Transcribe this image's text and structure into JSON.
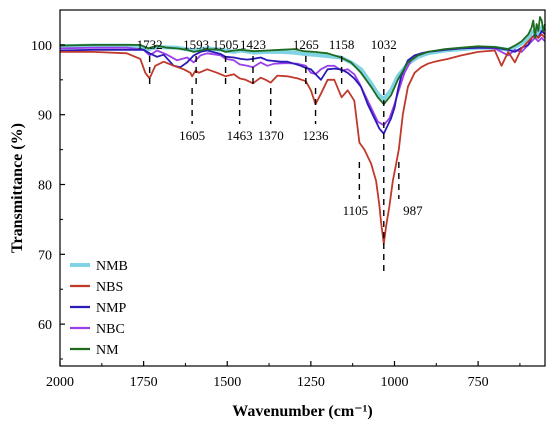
{
  "chart_data": {
    "type": "line",
    "xlabel": "Wavenumber (cm⁻¹)",
    "ylabel": "Transmittance (%)",
    "xlim": [
      2000,
      550
    ],
    "ylim": [
      54,
      105
    ],
    "xticks": [
      2000,
      1750,
      1500,
      1250,
      1000,
      750
    ],
    "yticks": [
      60,
      70,
      80,
      90,
      100
    ],
    "x_reversed": true,
    "grid": false,
    "legend_position": "bottom-left",
    "annotations_top": [
      "1732",
      "1593",
      "1505",
      "1423",
      "1265",
      "1158",
      "1032"
    ],
    "annotations_top_x": [
      1732,
      1593,
      1505,
      1423,
      1265,
      1158,
      1032
    ],
    "annotations_bottom": [
      "1605",
      "1463",
      "1370",
      "1236",
      "1105",
      "987"
    ],
    "annotations_bottom_x": [
      1605,
      1463,
      1370,
      1236,
      1105,
      987
    ],
    "series": [
      {
        "name": "NMB",
        "color": "#7fd3e3",
        "x": [
          2000,
          1900,
          1800,
          1760,
          1735,
          1710,
          1650,
          1600,
          1560,
          1520,
          1480,
          1460,
          1420,
          1380,
          1340,
          1300,
          1270,
          1240,
          1200,
          1160,
          1130,
          1100,
          1070,
          1050,
          1032,
          1010,
          990,
          960,
          930,
          900,
          850,
          800,
          750,
          700,
          660,
          640,
          620,
          600,
          590,
          580,
          570,
          560,
          550
        ],
        "y": [
          99.8,
          99.9,
          99.9,
          99.8,
          99.4,
          99.7,
          99.6,
          99.2,
          99.5,
          99.3,
          99.0,
          99.2,
          98.9,
          99.0,
          99.0,
          98.9,
          98.7,
          98.6,
          98.4,
          98.2,
          97.5,
          96.5,
          94.5,
          93.0,
          92.2,
          93.5,
          95.5,
          97.3,
          98.3,
          98.8,
          99.2,
          99.4,
          99.6,
          99.6,
          99.3,
          99.7,
          100.2,
          101.0,
          101.8,
          102.0,
          101.5,
          102.5,
          102.0
        ]
      },
      {
        "name": "NBS",
        "color": "#c0392b",
        "x": [
          2000,
          1900,
          1800,
          1760,
          1745,
          1732,
          1715,
          1690,
          1660,
          1630,
          1610,
          1605,
          1595,
          1585,
          1560,
          1530,
          1505,
          1480,
          1463,
          1445,
          1423,
          1400,
          1385,
          1370,
          1350,
          1320,
          1290,
          1265,
          1250,
          1236,
          1220,
          1200,
          1180,
          1158,
          1140,
          1120,
          1105,
          1090,
          1070,
          1055,
          1045,
          1040,
          1032,
          1025,
          1015,
          1005,
          995,
          987,
          975,
          960,
          940,
          920,
          900,
          880,
          860,
          840,
          800,
          750,
          700,
          680,
          660,
          640,
          620,
          600,
          590,
          580,
          570,
          560,
          550
        ],
        "y": [
          99.0,
          99.0,
          98.8,
          98.0,
          96.0,
          95.2,
          97.0,
          97.6,
          97.0,
          96.5,
          96.0,
          95.5,
          96.3,
          96.0,
          96.5,
          96.0,
          95.5,
          95.8,
          95.2,
          95.0,
          94.5,
          95.3,
          95.0,
          94.6,
          95.6,
          95.5,
          95.2,
          94.8,
          93.5,
          91.5,
          93.0,
          95.0,
          95.0,
          92.5,
          93.5,
          92.0,
          86.0,
          85.0,
          83.0,
          80.5,
          77.0,
          74.5,
          71.5,
          74.0,
          77.0,
          80.5,
          83.0,
          85.0,
          90.0,
          94.0,
          96.0,
          96.8,
          97.3,
          97.6,
          97.8,
          98.0,
          98.5,
          99.0,
          99.2,
          97.0,
          99.0,
          97.5,
          99.5,
          100.5,
          101.0,
          101.3,
          101.0,
          101.5,
          101.0
        ]
      },
      {
        "name": "NMP",
        "color": "#2a1bb5",
        "x": [
          2000,
          1900,
          1800,
          1750,
          1732,
          1710,
          1690,
          1660,
          1640,
          1620,
          1600,
          1580,
          1560,
          1520,
          1505,
          1480,
          1460,
          1440,
          1423,
          1400,
          1380,
          1360,
          1340,
          1320,
          1300,
          1280,
          1265,
          1250,
          1240,
          1220,
          1200,
          1180,
          1160,
          1140,
          1120,
          1100,
          1080,
          1060,
          1045,
          1032,
          1020,
          1010,
          1000,
          990,
          980,
          960,
          940,
          920,
          900,
          850,
          800,
          750,
          700,
          660,
          640,
          620,
          600,
          590,
          580,
          570,
          560,
          550
        ],
        "y": [
          99.2,
          99.3,
          99.3,
          99.3,
          98.8,
          98.3,
          98.6,
          97.0,
          96.8,
          97.5,
          98.5,
          99.0,
          99.2,
          98.7,
          98.3,
          98.2,
          98.0,
          97.9,
          98.0,
          98.2,
          97.8,
          97.7,
          97.6,
          97.6,
          97.3,
          97.0,
          96.7,
          96.5,
          96.0,
          95.0,
          96.5,
          96.6,
          96.5,
          96.0,
          95.2,
          94.0,
          91.5,
          89.5,
          88.0,
          87.3,
          88.5,
          89.5,
          91.0,
          93.5,
          95.5,
          97.8,
          98.5,
          98.8,
          99.0,
          99.3,
          99.5,
          99.6,
          99.6,
          99.3,
          99.0,
          99.6,
          100.0,
          101.0,
          101.5,
          101.0,
          102.0,
          101.5
        ]
      },
      {
        "name": "NBC",
        "color": "#9b40e8",
        "x": [
          2000,
          1900,
          1800,
          1750,
          1732,
          1710,
          1680,
          1650,
          1620,
          1600,
          1580,
          1560,
          1520,
          1505,
          1480,
          1463,
          1440,
          1423,
          1400,
          1380,
          1360,
          1320,
          1290,
          1265,
          1250,
          1236,
          1220,
          1200,
          1180,
          1158,
          1140,
          1120,
          1105,
          1090,
          1070,
          1050,
          1032,
          1015,
          1000,
          987,
          970,
          950,
          930,
          900,
          850,
          800,
          750,
          700,
          660,
          640,
          620,
          600,
          590,
          580,
          570,
          560,
          550
        ],
        "y": [
          99.5,
          99.6,
          99.6,
          99.3,
          98.5,
          99.2,
          98.6,
          97.8,
          98.2,
          97.5,
          98.5,
          98.8,
          98.5,
          98.0,
          97.8,
          97.2,
          97.0,
          96.8,
          97.5,
          97.0,
          97.3,
          97.4,
          97.3,
          97.0,
          96.0,
          95.8,
          96.5,
          97.0,
          97.0,
          96.3,
          96.5,
          95.8,
          94.5,
          93.0,
          91.0,
          89.0,
          88.5,
          89.5,
          91.5,
          93.5,
          96.0,
          97.8,
          98.5,
          99.0,
          99.3,
          99.5,
          99.6,
          99.5,
          98.5,
          99.3,
          99.0,
          100.0,
          100.5,
          101.0,
          100.5,
          101.0,
          100.5
        ]
      },
      {
        "name": "NM",
        "color": "#1e6b20",
        "x": [
          2000,
          1900,
          1800,
          1760,
          1735,
          1710,
          1680,
          1650,
          1620,
          1600,
          1560,
          1520,
          1505,
          1480,
          1460,
          1420,
          1380,
          1340,
          1300,
          1270,
          1240,
          1200,
          1160,
          1130,
          1100,
          1070,
          1050,
          1032,
          1010,
          990,
          960,
          930,
          900,
          850,
          800,
          750,
          700,
          660,
          640,
          620,
          610,
          600,
          590,
          585,
          580,
          575,
          570,
          565,
          560,
          555,
          550
        ],
        "y": [
          99.9,
          100.0,
          100.0,
          100.0,
          99.5,
          99.9,
          99.6,
          99.5,
          99.3,
          99.0,
          99.4,
          99.3,
          99.0,
          99.2,
          99.3,
          99.1,
          99.2,
          99.3,
          99.4,
          99.1,
          99.0,
          98.8,
          98.2,
          97.5,
          96.0,
          94.0,
          92.5,
          91.5,
          92.8,
          95.0,
          97.5,
          98.5,
          99.0,
          99.4,
          99.6,
          99.8,
          99.7,
          99.4,
          99.9,
          100.5,
          101.0,
          101.5,
          102.5,
          103.5,
          101.0,
          103.0,
          102.0,
          104.0,
          103.5,
          102.0,
          103.0
        ]
      }
    ]
  }
}
